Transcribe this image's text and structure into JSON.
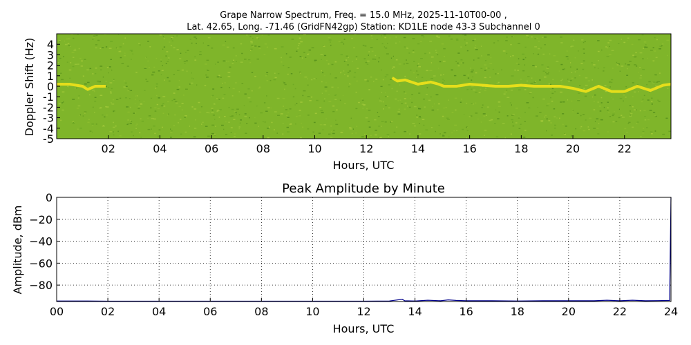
{
  "chart_data": [
    {
      "type": "heatmap",
      "title_line1": "Grape Narrow Spectrum, Freq. = 15.0 MHz, 2025-11-10T00-00 ,",
      "title_line2": "Lat.  42.65, Long. -71.46 (GridFN42gp) Station: KD1LE node 43-3 Subchannel 0",
      "xlabel": "Hours, UTC",
      "ylabel": "Doppler Shift (Hz)",
      "xlim": [
        0,
        23.8
      ],
      "ylim": [
        -5,
        5
      ],
      "xticks": [
        "02",
        "04",
        "06",
        "08",
        "10",
        "12",
        "14",
        "16",
        "18",
        "20",
        "22"
      ],
      "xtick_values": [
        2,
        4,
        6,
        8,
        10,
        12,
        14,
        16,
        18,
        20,
        22
      ],
      "yticks": [
        "4",
        "3",
        "2",
        "1",
        "0",
        "-1",
        "-2",
        "-3",
        "-4",
        "-5"
      ],
      "ytick_values": [
        4,
        3,
        2,
        1,
        0,
        -1,
        -2,
        -3,
        -4,
        -5
      ],
      "background_color": "#7fb52a",
      "trace_color": "#f2e21a",
      "trace": {
        "x": [
          0.0,
          0.5,
          1.0,
          1.2,
          1.5,
          1.9,
          13.0,
          13.2,
          13.5,
          14.0,
          14.5,
          14.8,
          15.0,
          15.5,
          16.0,
          16.5,
          17.0,
          17.5,
          18.0,
          18.5,
          19.0,
          19.5,
          20.0,
          20.5,
          21.0,
          21.5,
          22.0,
          22.5,
          23.0,
          23.5,
          23.8
        ],
        "y": [
          0.2,
          0.2,
          0.0,
          -0.3,
          0.0,
          0.0,
          0.8,
          0.5,
          0.6,
          0.2,
          0.4,
          0.2,
          0.0,
          0.0,
          0.2,
          0.1,
          0.0,
          0.0,
          0.1,
          0.0,
          0.0,
          0.0,
          -0.2,
          -0.5,
          0.0,
          -0.5,
          -0.5,
          0.0,
          -0.4,
          0.1,
          0.2
        ]
      }
    },
    {
      "type": "line",
      "title": "Peak Amplitude by Minute",
      "xlabel": "Hours, UTC",
      "ylabel": "Amplitude, dBm",
      "xlim": [
        0,
        24
      ],
      "ylim": [
        -95,
        0
      ],
      "grid": true,
      "xticks": [
        "00",
        "02",
        "04",
        "06",
        "08",
        "10",
        "12",
        "14",
        "16",
        "18",
        "20",
        "22",
        "24"
      ],
      "xtick_values": [
        0,
        2,
        4,
        6,
        8,
        10,
        12,
        14,
        16,
        18,
        20,
        22,
        24
      ],
      "yticks": [
        "0",
        "−20",
        "−40",
        "−60",
        "−80"
      ],
      "ytick_values": [
        0,
        -20,
        -40,
        -60,
        -80
      ],
      "line_color": "#00008b",
      "series": [
        {
          "x": [
            0,
            1,
            2,
            3,
            4,
            5,
            6,
            7,
            8,
            9,
            10,
            11,
            12,
            13,
            13.5,
            13.6,
            14,
            14.5,
            15,
            15.3,
            15.6,
            16,
            17,
            18,
            19,
            20,
            21,
            21.5,
            22,
            22.5,
            23,
            23.5,
            23.95,
            24
          ],
          "y": [
            -94.5,
            -94.5,
            -94.7,
            -94.7,
            -94.7,
            -94.7,
            -94.7,
            -94.7,
            -94.7,
            -94.7,
            -94.7,
            -94.7,
            -94.7,
            -94.5,
            -93.0,
            -94.3,
            -94.5,
            -93.8,
            -94.3,
            -93.5,
            -94.0,
            -94.3,
            -94.3,
            -94.5,
            -94.3,
            -94.3,
            -94.3,
            -93.8,
            -94.3,
            -93.8,
            -94.3,
            -94.2,
            -94.0,
            0
          ]
        }
      ]
    }
  ]
}
